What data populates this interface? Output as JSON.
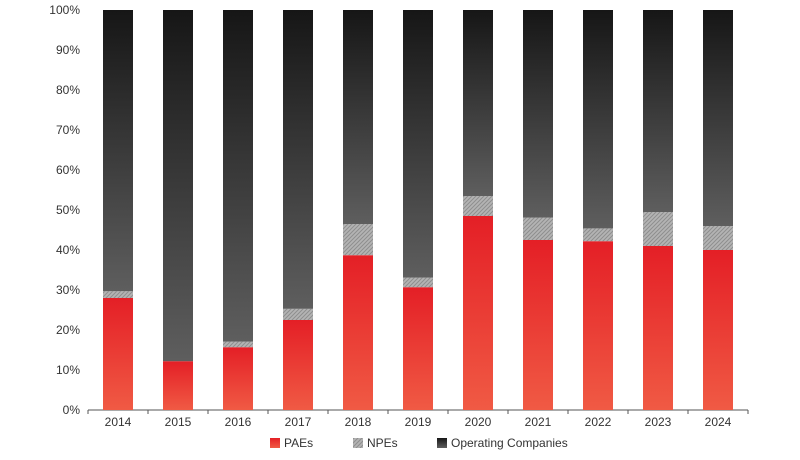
{
  "chart_data": {
    "type": "bar",
    "stacked": true,
    "categories": [
      "2014",
      "2015",
      "2016",
      "2017",
      "2018",
      "2019",
      "2020",
      "2021",
      "2022",
      "2023",
      "2024"
    ],
    "series": [
      {
        "name": "PAEs",
        "color": "#e8322d",
        "values": [
          28,
          12.2,
          15.7,
          22.5,
          38.7,
          30.7,
          48.5,
          42.5,
          42.2,
          41,
          40
        ]
      },
      {
        "name": "NPEs",
        "color": "#a9a9a9",
        "values": [
          1.7,
          0,
          1.4,
          2.8,
          7.8,
          2.4,
          5,
          5.6,
          3.2,
          8.5,
          6
        ]
      },
      {
        "name": "Operating Companies",
        "color": "#2a2a2a",
        "values": [
          70.3,
          87.8,
          82.9,
          74.7,
          53.5,
          66.9,
          46.5,
          51.9,
          54.6,
          50.5,
          54
        ]
      }
    ],
    "ylim": [
      0,
      100
    ],
    "yticks": [
      "0%",
      "10%",
      "20%",
      "30%",
      "40%",
      "50%",
      "60%",
      "70%",
      "80%",
      "90%",
      "100%"
    ],
    "title": "",
    "xlabel": "",
    "ylabel": "",
    "legend": "bottom"
  }
}
